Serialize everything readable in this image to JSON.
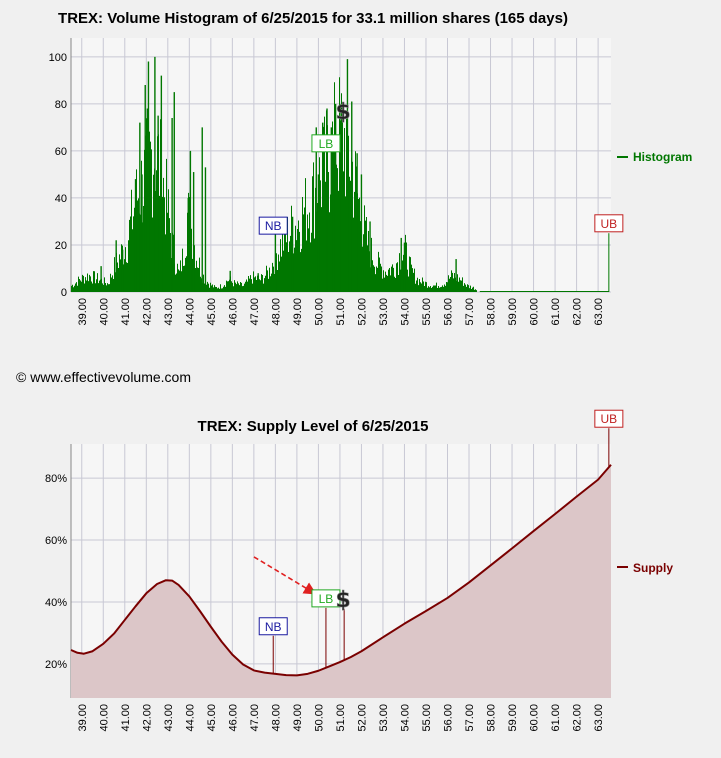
{
  "copyright": "© www.effectivevolume.com",
  "colors": {
    "histogram": "#007700",
    "supply_line": "#7a0000",
    "supply_fill": "#dcc6c8",
    "plot_bg": "#f6f6f6",
    "grid": "#c8c8d4",
    "nb": "#1a1aa0",
    "lb": "#22aa22",
    "ub": "#c02020",
    "arrow": "#e02020"
  },
  "chart_data": [
    {
      "type": "bar",
      "title": "TREX: Volume Histogram of 6/25/2015 for 33.1 million shares (165 days)",
      "xlim": [
        38.5,
        63.6
      ],
      "ylim": [
        0,
        108
      ],
      "ytick_values": [
        0,
        20,
        40,
        60,
        80,
        100
      ],
      "xtick_labels": [
        "39.00",
        "40.00",
        "41.00",
        "42.00",
        "43.00",
        "44.00",
        "45.00",
        "46.00",
        "47.00",
        "48.00",
        "49.00",
        "50.00",
        "51.00",
        "52.00",
        "53.00",
        "54.00",
        "55.00",
        "56.00",
        "57.00",
        "58.00",
        "59.00",
        "60.00",
        "61.00",
        "62.00",
        "63.00"
      ],
      "legend": "Histogram",
      "legend_placement": "right",
      "markers": [
        {
          "label": "NB",
          "x": 47.9,
          "y": 28,
          "color": "nb"
        },
        {
          "label": "LB",
          "x": 50.35,
          "y": 63,
          "color": "lb"
        },
        {
          "label": "$",
          "x": 51.15,
          "y": 77,
          "color": "dollar"
        },
        {
          "label": "UB",
          "x": 63.5,
          "y": 29,
          "color": "ub"
        }
      ],
      "profile_x": [
        38.5,
        38.9,
        39.3,
        39.8,
        40.2,
        40.5,
        40.8,
        41.1,
        41.4,
        41.6,
        41.9,
        42.1,
        42.35,
        42.6,
        42.9,
        43.2,
        43.5,
        43.7,
        43.9,
        44.1,
        44.3,
        44.6,
        44.9,
        45.2,
        45.5,
        45.8,
        46.1,
        46.5,
        46.9,
        47.3,
        47.7,
        48.0,
        48.3,
        48.7,
        49.1,
        49.5,
        49.9,
        50.2,
        50.5,
        50.8,
        51.1,
        51.4,
        51.7,
        52.0,
        52.3,
        52.7,
        53.1,
        53.5,
        53.8,
        54.0,
        54.3,
        54.6,
        55.0,
        55.4,
        55.8,
        56.2,
        56.6,
        56.9,
        57.2,
        57.5
      ],
      "profile_y": [
        3,
        6,
        8,
        6,
        4,
        12,
        18,
        25,
        40,
        48,
        55,
        62,
        70,
        60,
        45,
        22,
        8,
        18,
        38,
        30,
        18,
        8,
        4,
        2,
        3,
        6,
        4,
        3,
        7,
        6,
        10,
        18,
        24,
        30,
        35,
        42,
        50,
        58,
        65,
        72,
        76,
        68,
        52,
        35,
        22,
        14,
        10,
        12,
        18,
        20,
        10,
        6,
        4,
        3,
        4,
        8,
        6,
        3,
        2,
        0
      ],
      "peaks": [
        {
          "x": 41.95,
          "y": 88
        },
        {
          "x": 42.1,
          "y": 98
        },
        {
          "x": 42.05,
          "y": 78
        },
        {
          "x": 42.4,
          "y": 100
        },
        {
          "x": 42.55,
          "y": 75
        },
        {
          "x": 42.7,
          "y": 92
        },
        {
          "x": 43.3,
          "y": 85
        },
        {
          "x": 43.2,
          "y": 74
        },
        {
          "x": 41.7,
          "y": 72
        },
        {
          "x": 41.5,
          "y": 48
        },
        {
          "x": 41.8,
          "y": 50
        },
        {
          "x": 44.05,
          "y": 60
        },
        {
          "x": 44.2,
          "y": 51
        },
        {
          "x": 43.95,
          "y": 40
        },
        {
          "x": 44.6,
          "y": 70
        },
        {
          "x": 44.75,
          "y": 53
        },
        {
          "x": 40.6,
          "y": 22
        },
        {
          "x": 40.9,
          "y": 18
        },
        {
          "x": 49.9,
          "y": 70
        },
        {
          "x": 50.2,
          "y": 72
        },
        {
          "x": 50.4,
          "y": 78
        },
        {
          "x": 50.6,
          "y": 70
        },
        {
          "x": 50.8,
          "y": 80
        },
        {
          "x": 51.0,
          "y": 80
        },
        {
          "x": 51.35,
          "y": 99
        },
        {
          "x": 51.55,
          "y": 81
        },
        {
          "x": 51.8,
          "y": 59
        },
        {
          "x": 52.0,
          "y": 50
        },
        {
          "x": 50.0,
          "y": 50
        },
        {
          "x": 48.8,
          "y": 32
        },
        {
          "x": 49.3,
          "y": 33
        },
        {
          "x": 52.4,
          "y": 30
        },
        {
          "x": 53.85,
          "y": 23
        },
        {
          "x": 54.0,
          "y": 21
        },
        {
          "x": 56.4,
          "y": 14
        },
        {
          "x": 48.0,
          "y": 28
        },
        {
          "x": 47.2,
          "y": 8
        },
        {
          "x": 45.9,
          "y": 9
        },
        {
          "x": 39.9,
          "y": 11
        }
      ],
      "ub_line": {
        "x": 63.5,
        "y": 25
      }
    },
    {
      "type": "area",
      "title": "TREX: Supply Level of 6/25/2015",
      "xlim": [
        38.5,
        63.6
      ],
      "ylim": [
        9,
        91
      ],
      "ytick_labels": [
        "20%",
        "40%",
        "60%",
        "80%"
      ],
      "ytick_values": [
        20,
        40,
        60,
        80
      ],
      "xtick_labels": [
        "39.00",
        "40.00",
        "41.00",
        "42.00",
        "43.00",
        "44.00",
        "45.00",
        "46.00",
        "47.00",
        "48.00",
        "49.00",
        "50.00",
        "51.00",
        "52.00",
        "53.00",
        "54.00",
        "55.00",
        "56.00",
        "57.00",
        "58.00",
        "59.00",
        "60.00",
        "61.00",
        "62.00",
        "63.00"
      ],
      "legend": "Supply",
      "legend_placement": "right",
      "series": [
        {
          "name": "Supply",
          "x": [
            38.5,
            38.8,
            39.1,
            39.5,
            40.0,
            40.5,
            41.0,
            41.5,
            42.0,
            42.5,
            42.9,
            43.2,
            43.5,
            44.0,
            44.5,
            45.0,
            45.5,
            46.0,
            46.5,
            47.0,
            47.5,
            48.0,
            48.5,
            49.0,
            49.5,
            50.0,
            50.5,
            51.0,
            51.5,
            52.0,
            53.0,
            54.0,
            55.0,
            56.0,
            57.0,
            58.0,
            59.0,
            60.0,
            61.0,
            62.0,
            63.0,
            63.6
          ],
          "y": [
            24.5,
            23.6,
            23.3,
            24.1,
            26.5,
            29.8,
            34.2,
            38.6,
            42.8,
            45.8,
            47.0,
            46.9,
            45.5,
            41.8,
            37.0,
            32.0,
            27.2,
            23.0,
            19.8,
            17.9,
            17.2,
            16.8,
            16.4,
            16.3,
            16.8,
            17.8,
            19.2,
            20.6,
            22.2,
            24.1,
            28.6,
            33.0,
            37.1,
            41.3,
            46.3,
            51.8,
            57.3,
            62.9,
            68.4,
            74.0,
            79.5,
            84.3
          ]
        }
      ],
      "markers": [
        {
          "label": "NB",
          "x": 47.9,
          "y": 32,
          "color": "nb"
        },
        {
          "label": "LB",
          "x": 50.35,
          "y": 41,
          "color": "lb"
        },
        {
          "label": "$",
          "x": 51.15,
          "y": 41,
          "color": "dollar"
        },
        {
          "label": "UB",
          "x": 63.5,
          "y": 99,
          "color": "ub"
        }
      ]
    }
  ]
}
